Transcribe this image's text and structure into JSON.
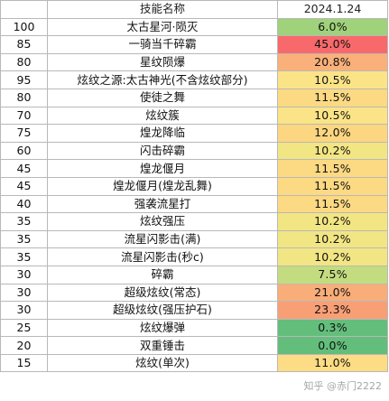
{
  "header": {
    "col1": "",
    "col2": "技能名称",
    "col3": "2024.1.24"
  },
  "rows": [
    {
      "level": "100",
      "name": "太古星河·陨灭",
      "rate": "6.0%",
      "color": "#9fd27a"
    },
    {
      "level": "85",
      "name": "一骑当千碎霸",
      "rate": "45.0%",
      "color": "#f8696b"
    },
    {
      "level": "80",
      "name": "星纹陨爆",
      "rate": "20.8%",
      "color": "#f9b07a"
    },
    {
      "level": "95",
      "name": "炫纹之源:太古神光(不含炫纹部分)",
      "rate": "10.5%",
      "color": "#fbe487"
    },
    {
      "level": "80",
      "name": "使徒之舞",
      "rate": "11.5%",
      "color": "#fcd983"
    },
    {
      "level": "70",
      "name": "炫纹簇",
      "rate": "10.5%",
      "color": "#fbe487"
    },
    {
      "level": "75",
      "name": "煌龙降临",
      "rate": "12.0%",
      "color": "#fcd681"
    },
    {
      "level": "60",
      "name": "闪击碎霸",
      "rate": "10.2%",
      "color": "#f2e584"
    },
    {
      "level": "45",
      "name": "煌龙偃月",
      "rate": "11.5%",
      "color": "#fcd983"
    },
    {
      "level": "45",
      "name": "煌龙偃月(煌龙乱舞)",
      "rate": "11.5%",
      "color": "#fcd983"
    },
    {
      "level": "40",
      "name": "强袭流星打",
      "rate": "11.5%",
      "color": "#fcd983"
    },
    {
      "level": "35",
      "name": "炫纹强压",
      "rate": "10.2%",
      "color": "#f2e584"
    },
    {
      "level": "35",
      "name": "流星闪影击(满)",
      "rate": "10.2%",
      "color": "#f2e584"
    },
    {
      "level": "35",
      "name": "流星闪影击(秒c)",
      "rate": "10.2%",
      "color": "#f2e584"
    },
    {
      "level": "30",
      "name": "碎霸",
      "rate": "7.5%",
      "color": "#c3dc7f"
    },
    {
      "level": "30",
      "name": "超级炫纹(常态)",
      "rate": "21.0%",
      "color": "#f9ad79"
    },
    {
      "level": "30",
      "name": "超级炫纹(强压护石)",
      "rate": "23.3%",
      "color": "#f99f76"
    },
    {
      "level": "25",
      "name": "炫纹爆弹",
      "rate": "0.3%",
      "color": "#63be7b"
    },
    {
      "level": "20",
      "name": "双重锤击",
      "rate": "0.0%",
      "color": "#63be7b"
    },
    {
      "level": "15",
      "name": "炫纹(单次)",
      "rate": "11.0%",
      "color": "#fcdc84"
    }
  ],
  "watermark": "知乎 @赤门2222"
}
